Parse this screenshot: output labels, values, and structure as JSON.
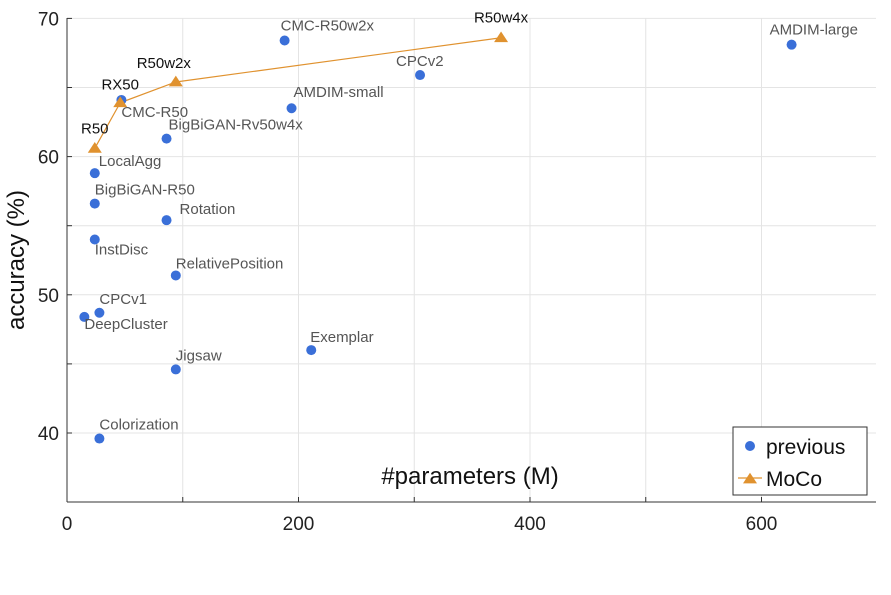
{
  "chart_data": {
    "type": "scatter",
    "title": "",
    "xlabel": "#parameters (M)",
    "ylabel": "accuracy (%)",
    "xlim": [
      0,
      700
    ],
    "ylim": [
      35,
      71
    ],
    "xticks": [
      0,
      200,
      400,
      600
    ],
    "yticks": [
      40,
      50,
      60,
      70
    ],
    "grid": true,
    "legend_position": "bottom-right",
    "series": [
      {
        "name": "previous",
        "marker": "circle",
        "color": "#3a6fd8",
        "points": [
          {
            "label": "CMC-R50w2x",
            "x": 188,
            "y": 68.4
          },
          {
            "label": "AMDIM-large",
            "x": 626,
            "y": 68.1
          },
          {
            "label": "CPCv2",
            "x": 305,
            "y": 65.9
          },
          {
            "label": "AMDIM-small",
            "x": 194,
            "y": 63.5
          },
          {
            "label": "CMC-R50",
            "x": 47,
            "y": 64.1
          },
          {
            "label": "BigBiGAN-Rv50w4x",
            "x": 86,
            "y": 61.3
          },
          {
            "label": "LocalAgg",
            "x": 24,
            "y": 58.8
          },
          {
            "label": "BigBiGAN-R50",
            "x": 24,
            "y": 56.6
          },
          {
            "label": "Rotation",
            "x": 86,
            "y": 55.4
          },
          {
            "label": "InstDisc",
            "x": 24,
            "y": 54.0
          },
          {
            "label": "RelativePosition",
            "x": 94,
            "y": 51.4
          },
          {
            "label": "CPCv1",
            "x": 28,
            "y": 48.7
          },
          {
            "label": "DeepCluster",
            "x": 15,
            "y": 48.4
          },
          {
            "label": "Exemplar",
            "x": 211,
            "y": 46.0
          },
          {
            "label": "Jigsaw",
            "x": 94,
            "y": 44.6
          },
          {
            "label": "Colorization",
            "x": 28,
            "y": 39.6
          }
        ]
      },
      {
        "name": "MoCo",
        "marker": "triangle",
        "color": "#e0922f",
        "line": true,
        "points": [
          {
            "label": "R50",
            "x": 24,
            "y": 60.6
          },
          {
            "label": "RX50",
            "x": 46,
            "y": 63.9
          },
          {
            "label": "R50w2x",
            "x": 94,
            "y": 65.4
          },
          {
            "label": "R50w4x",
            "x": 375,
            "y": 68.6
          }
        ]
      }
    ]
  }
}
